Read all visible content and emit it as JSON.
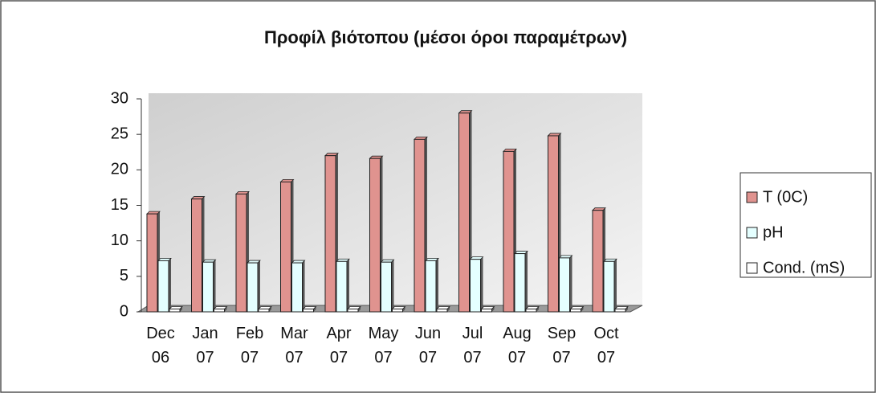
{
  "chart_data": {
    "type": "bar3d",
    "title": "Προφίλ βιότοπου (μέσοι όροι παραμέτρων)",
    "categories": [
      "Dec 06",
      "Jan 07",
      "Feb 07",
      "Mar 07",
      "Apr 07",
      "May 07",
      "Jun 07",
      "Jul 07",
      "Aug 07",
      "Sep 07",
      "Oct 07"
    ],
    "series": [
      {
        "name": "T (0C)",
        "color": "#e0938f",
        "values": [
          13.8,
          15.9,
          16.6,
          18.3,
          22.0,
          21.6,
          24.3,
          28.0,
          22.6,
          24.8,
          14.3
        ]
      },
      {
        "name": "pH",
        "color": "#e4ffff",
        "values": [
          7.2,
          7.0,
          6.9,
          6.9,
          7.1,
          7.0,
          7.2,
          7.4,
          8.2,
          7.6,
          7.1
        ]
      },
      {
        "name": "Cond. (mS)",
        "color": "#ffffff",
        "values": [
          0.4,
          0.4,
          0.4,
          0.4,
          0.4,
          0.4,
          0.4,
          0.4,
          0.4,
          0.4,
          0.4
        ]
      }
    ],
    "ylim": [
      0,
      30
    ],
    "yticks": [
      0,
      5,
      10,
      15,
      20,
      25,
      30
    ],
    "legend": "right"
  }
}
